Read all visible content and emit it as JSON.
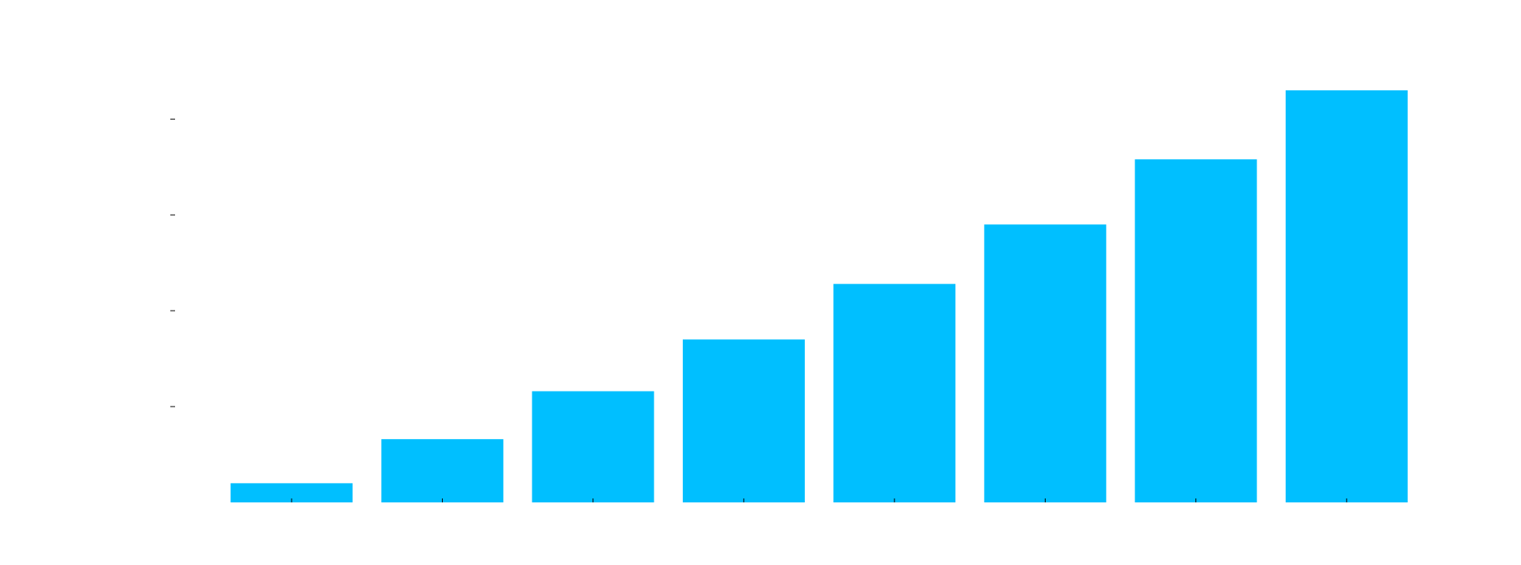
{
  "chart_data": {
    "type": "bar",
    "title": "",
    "xlabel": "",
    "ylabel": "",
    "categories": [
      "",
      "",
      "",
      "",
      "",
      "",
      "",
      ""
    ],
    "values": [
      1,
      3.3,
      5.8,
      8.5,
      11.4,
      14.5,
      17.9,
      21.5
    ],
    "ylim": [
      0,
      21.5
    ],
    "yticks": [
      5,
      10,
      15,
      20
    ],
    "grid": false,
    "legend": "none",
    "bar_color": "#00bfff",
    "tick_color": "#000000"
  }
}
